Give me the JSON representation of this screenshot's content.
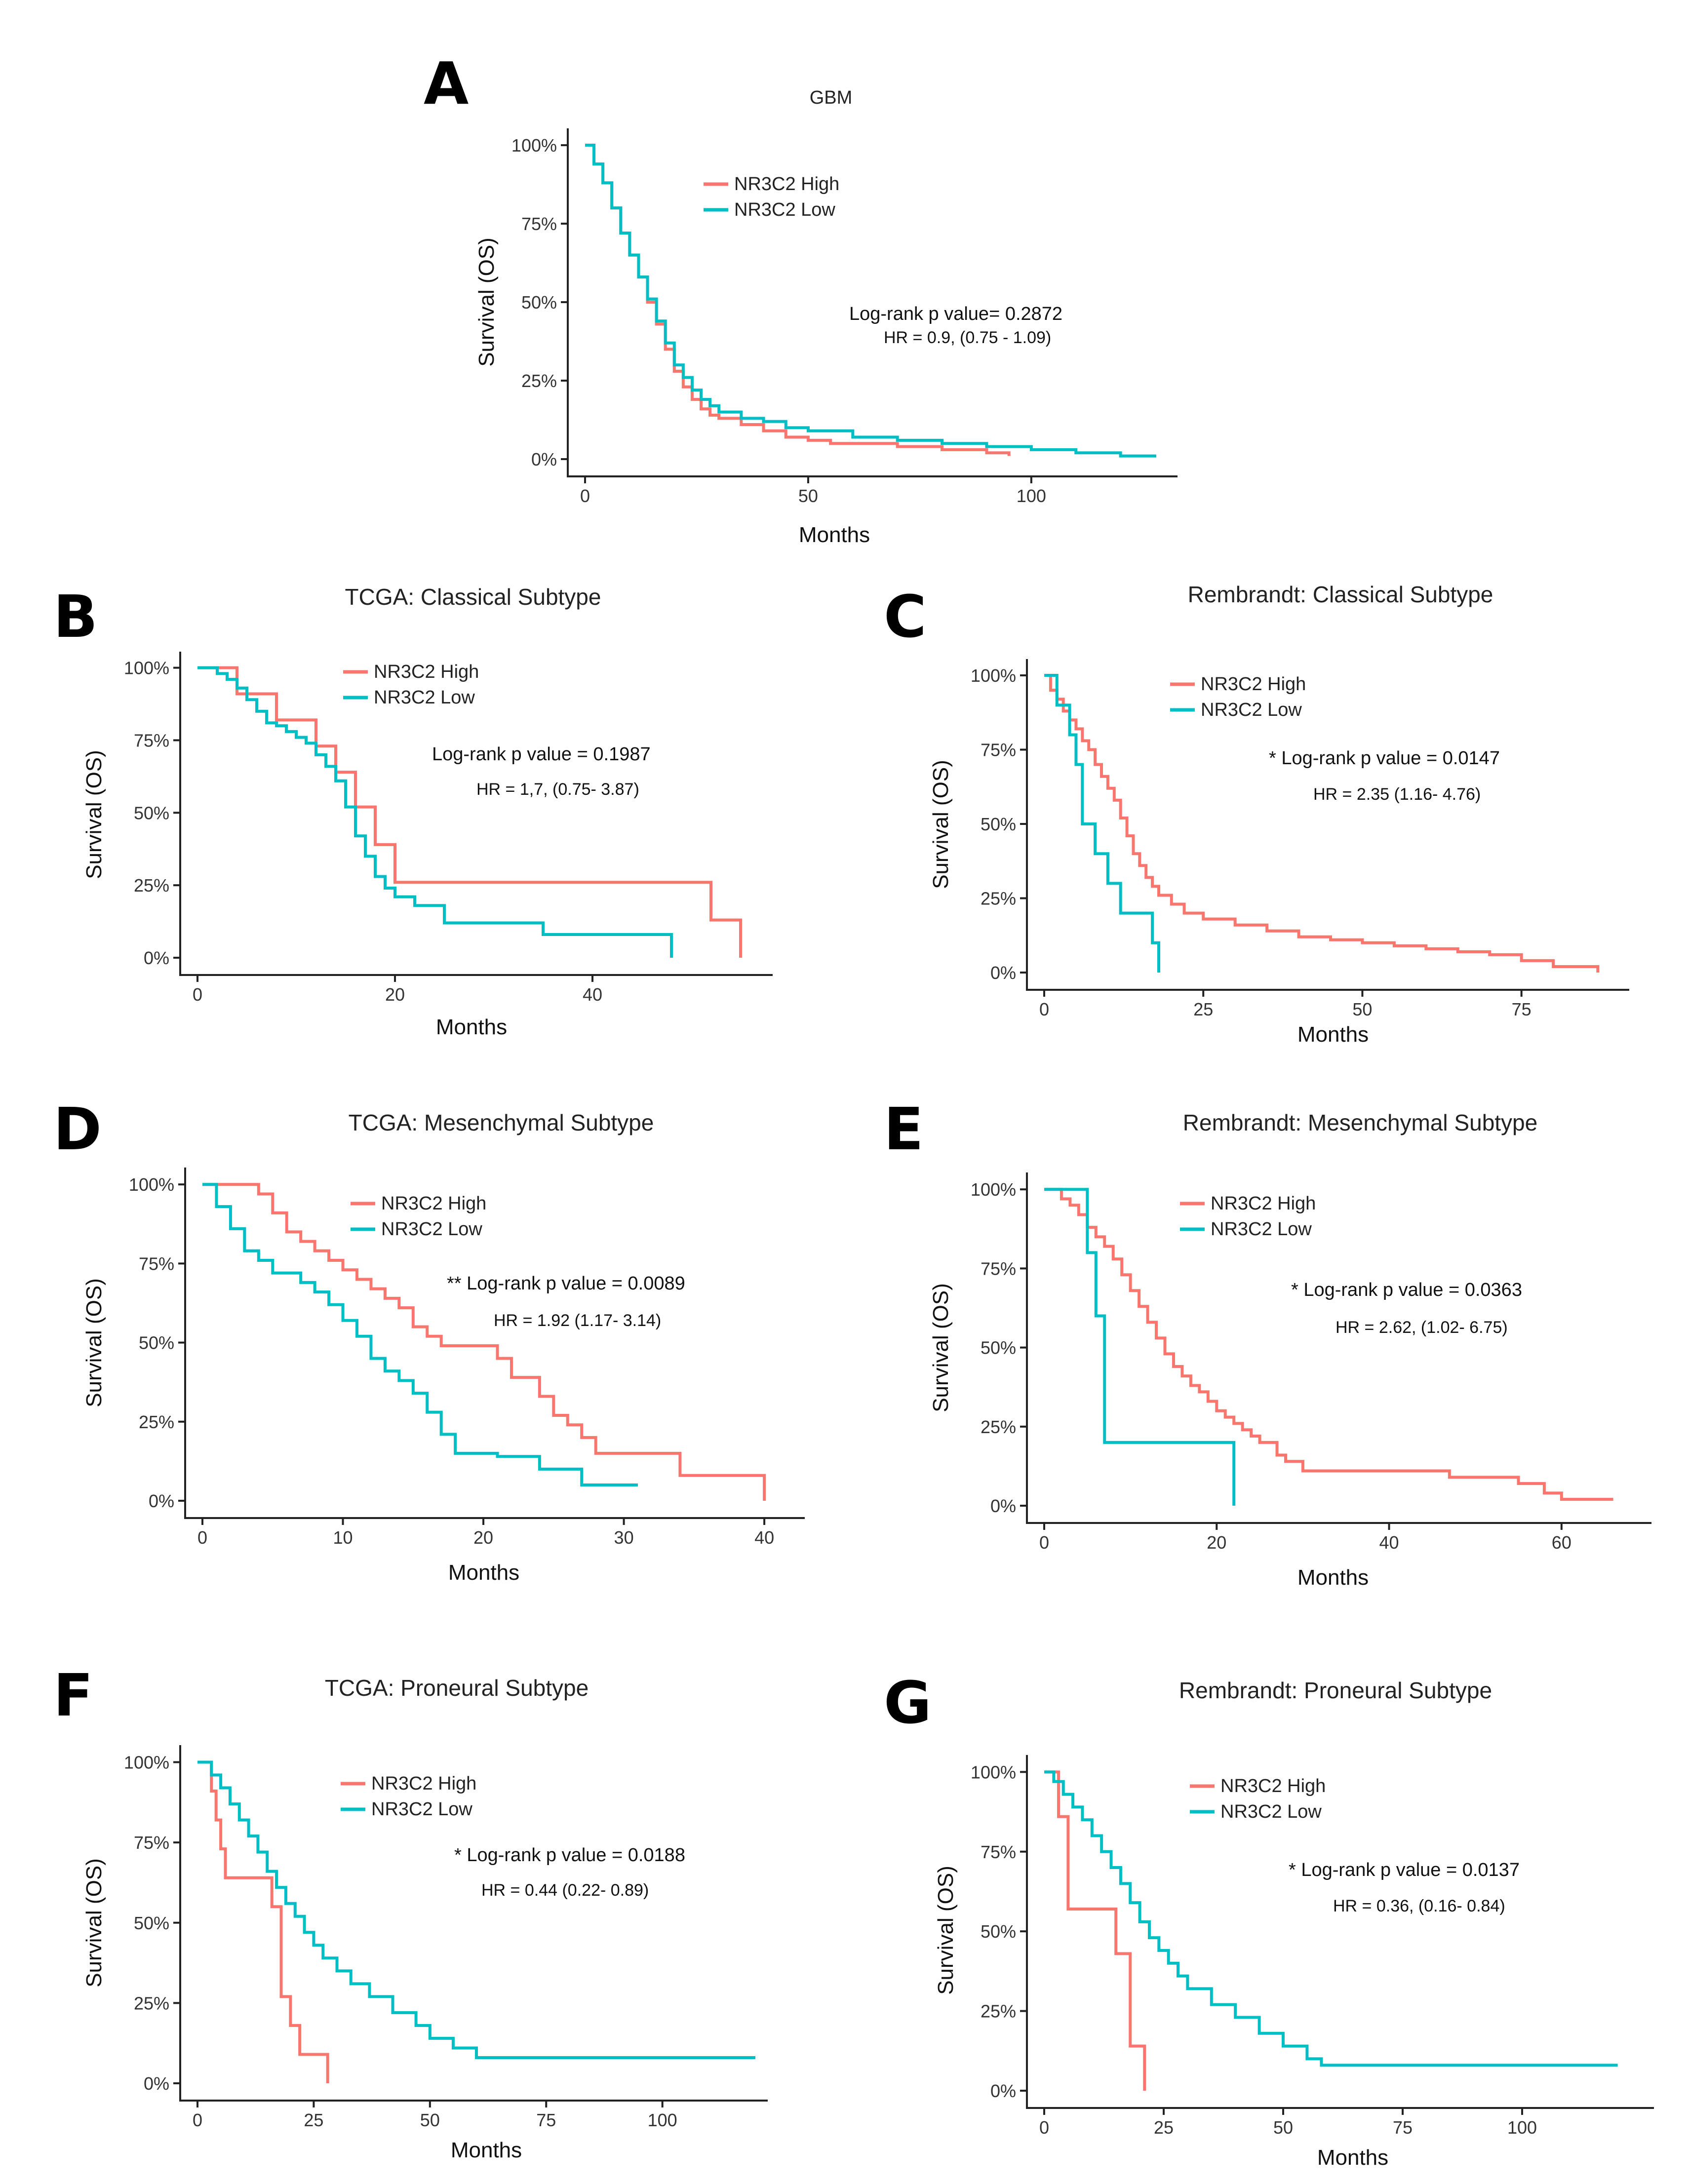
{
  "colors": {
    "high": "#F8766D",
    "low": "#00BFC4"
  },
  "chart_data": [
    {
      "panel": "A",
      "type": "line",
      "title": "GBM",
      "xlabel": "Months",
      "ylabel": "Survival (OS)",
      "xlim": [
        0,
        130
      ],
      "ylim": [
        0,
        1.03
      ],
      "xticks": [
        0,
        50,
        100
      ],
      "yticks": [
        "0%",
        "25%",
        "50%",
        "75%",
        "100%"
      ],
      "legend": [
        "NR3C2 High",
        "NR3C2 Low"
      ],
      "annotation": "Log-rank p value= 0.2872",
      "hr_text": "HR = 0.9, (0.75 - 1.09)",
      "series": [
        {
          "name": "NR3C2 High",
          "color_key": "high",
          "x": [
            0,
            2,
            4,
            6,
            8,
            10,
            12,
            14,
            16,
            18,
            20,
            22,
            24,
            26,
            28,
            30,
            35,
            40,
            45,
            50,
            55,
            60,
            70,
            80,
            90,
            95
          ],
          "y": [
            1.0,
            0.94,
            0.88,
            0.8,
            0.72,
            0.65,
            0.58,
            0.5,
            0.43,
            0.35,
            0.28,
            0.23,
            0.19,
            0.16,
            0.14,
            0.13,
            0.11,
            0.09,
            0.07,
            0.06,
            0.05,
            0.05,
            0.04,
            0.03,
            0.02,
            0.01
          ]
        },
        {
          "name": "NR3C2 Low",
          "color_key": "low",
          "x": [
            0,
            2,
            4,
            6,
            8,
            10,
            12,
            14,
            16,
            18,
            20,
            22,
            24,
            26,
            28,
            30,
            35,
            40,
            45,
            50,
            60,
            70,
            80,
            90,
            100,
            110,
            120,
            128
          ],
          "y": [
            1.0,
            0.94,
            0.88,
            0.8,
            0.72,
            0.65,
            0.58,
            0.51,
            0.44,
            0.37,
            0.3,
            0.26,
            0.22,
            0.19,
            0.17,
            0.15,
            0.13,
            0.12,
            0.1,
            0.09,
            0.07,
            0.06,
            0.05,
            0.04,
            0.03,
            0.02,
            0.01,
            0.01
          ]
        }
      ]
    },
    {
      "panel": "B",
      "type": "line",
      "title": "TCGA:  Classical Subtype",
      "xlabel": "Months",
      "ylabel": "Survival (OS)",
      "xlim": [
        0,
        57
      ],
      "ylim": [
        0,
        1.03
      ],
      "xticks": [
        0,
        20,
        40
      ],
      "yticks": [
        "0%",
        "25%",
        "50%",
        "75%",
        "100%"
      ],
      "legend": [
        "NR3C2 High",
        "NR3C2 Low"
      ],
      "annotation": "Log-rank p value = 0.1987",
      "hr_text": "HR = 1,7, (0.75- 3.87)",
      "series": [
        {
          "name": "NR3C2 High",
          "color_key": "high",
          "x": [
            0,
            4,
            8,
            11,
            12,
            14,
            16,
            18,
            20,
            52,
            55
          ],
          "y": [
            1.0,
            0.91,
            0.82,
            0.82,
            0.73,
            0.64,
            0.52,
            0.39,
            0.26,
            0.13,
            0.0
          ]
        },
        {
          "name": "NR3C2 Low",
          "color_key": "low",
          "x": [
            0,
            2,
            3,
            4,
            5,
            6,
            7,
            8,
            9,
            10,
            11,
            12,
            13,
            14,
            15,
            16,
            17,
            18,
            19,
            20,
            22,
            25,
            35,
            48
          ],
          "y": [
            1.0,
            0.98,
            0.96,
            0.93,
            0.89,
            0.85,
            0.81,
            0.8,
            0.78,
            0.76,
            0.74,
            0.7,
            0.66,
            0.61,
            0.52,
            0.42,
            0.35,
            0.28,
            0.24,
            0.21,
            0.18,
            0.12,
            0.08,
            0.0
          ]
        }
      ]
    },
    {
      "panel": "C",
      "type": "line",
      "title": "Rembrandt: Classical Subtype",
      "xlabel": "Months",
      "ylabel": "Survival (OS)",
      "xlim": [
        0,
        90
      ],
      "ylim": [
        0,
        1.03
      ],
      "xticks": [
        0,
        25,
        50,
        75
      ],
      "yticks": [
        "0%",
        "25%",
        "50%",
        "75%",
        "100%"
      ],
      "legend": [
        "NR3C2 High",
        "NR3C2 Low"
      ],
      "annotation": "* Log-rank p value = 0.0147",
      "hr_text": "HR = 2.35 (1.16- 4.76)",
      "series": [
        {
          "name": "NR3C2 High",
          "color_key": "high",
          "x": [
            0,
            1,
            2,
            3,
            4,
            5,
            6,
            7,
            8,
            9,
            10,
            11,
            12,
            13,
            14,
            15,
            16,
            17,
            18,
            20,
            22,
            25,
            30,
            35,
            40,
            45,
            50,
            55,
            60,
            65,
            70,
            75,
            80,
            87
          ],
          "y": [
            1.0,
            0.95,
            0.92,
            0.88,
            0.85,
            0.82,
            0.78,
            0.75,
            0.7,
            0.66,
            0.62,
            0.58,
            0.52,
            0.46,
            0.4,
            0.36,
            0.32,
            0.29,
            0.26,
            0.23,
            0.2,
            0.18,
            0.16,
            0.14,
            0.12,
            0.11,
            0.1,
            0.09,
            0.08,
            0.07,
            0.06,
            0.04,
            0.02,
            0.0
          ]
        },
        {
          "name": "NR3C2 Low",
          "color_key": "low",
          "x": [
            0,
            2,
            4,
            5,
            6,
            8,
            10,
            12,
            16,
            17,
            18
          ],
          "y": [
            1.0,
            0.9,
            0.8,
            0.7,
            0.5,
            0.4,
            0.3,
            0.2,
            0.2,
            0.1,
            0.0
          ]
        }
      ]
    },
    {
      "panel": "D",
      "type": "line",
      "title": "TCGA:  Mesenchymal Subtype",
      "xlabel": "Months",
      "ylabel": "Survival (OS)",
      "xlim": [
        0,
        42
      ],
      "ylim": [
        0,
        1.03
      ],
      "xticks": [
        0,
        10,
        20,
        30,
        40
      ],
      "yticks": [
        "0%",
        "25%",
        "50%",
        "75%",
        "100%"
      ],
      "legend": [
        "NR3C2 High",
        "NR3C2 Low"
      ],
      "annotation": "** Log-rank p value = 0.0089",
      "hr_text": "HR = 1.92 (1.17- 3.14)",
      "series": [
        {
          "name": "NR3C2 High",
          "color_key": "high",
          "x": [
            0,
            4,
            5,
            6,
            7,
            8,
            9,
            10,
            11,
            12,
            13,
            14,
            15,
            16,
            17,
            18,
            21,
            22,
            24,
            25,
            26,
            27,
            28,
            30,
            34,
            40
          ],
          "y": [
            1.0,
            0.97,
            0.91,
            0.85,
            0.82,
            0.79,
            0.76,
            0.73,
            0.7,
            0.67,
            0.64,
            0.61,
            0.55,
            0.52,
            0.49,
            0.49,
            0.45,
            0.39,
            0.33,
            0.27,
            0.24,
            0.2,
            0.15,
            0.15,
            0.08,
            0.0
          ]
        },
        {
          "name": "NR3C2 Low",
          "color_key": "low",
          "x": [
            0,
            1,
            2,
            3,
            4,
            5,
            6,
            7,
            8,
            9,
            10,
            11,
            12,
            13,
            14,
            15,
            16,
            17,
            18,
            21,
            24,
            27,
            31
          ],
          "y": [
            1.0,
            0.93,
            0.86,
            0.79,
            0.76,
            0.72,
            0.72,
            0.69,
            0.66,
            0.62,
            0.57,
            0.52,
            0.45,
            0.41,
            0.38,
            0.34,
            0.28,
            0.21,
            0.15,
            0.14,
            0.1,
            0.05,
            0.05
          ]
        }
      ]
    },
    {
      "panel": "E",
      "type": "line",
      "title": "Rembrandt: Mesenchymal Subtype",
      "xlabel": "Months",
      "ylabel": "Survival (OS)",
      "xlim": [
        0,
        69
      ],
      "ylim": [
        0,
        1.03
      ],
      "xticks": [
        0,
        20,
        40,
        60
      ],
      "yticks": [
        "0%",
        "25%",
        "50%",
        "75%",
        "100%"
      ],
      "legend": [
        "NR3C2 High",
        "NR3C2 Low"
      ],
      "annotation": "* Log-rank p value = 0.0363",
      "hr_text": "HR = 2.62, (1.02- 6.75)",
      "series": [
        {
          "name": "NR3C2 High",
          "color_key": "high",
          "x": [
            0,
            2,
            3,
            4,
            5,
            6,
            7,
            8,
            9,
            10,
            11,
            12,
            13,
            14,
            15,
            16,
            17,
            18,
            19,
            20,
            21,
            22,
            23,
            24,
            25,
            27,
            28,
            30,
            35,
            40,
            47,
            55,
            58,
            60,
            66
          ],
          "y": [
            1.0,
            0.97,
            0.95,
            0.92,
            0.88,
            0.85,
            0.82,
            0.78,
            0.73,
            0.68,
            0.63,
            0.58,
            0.53,
            0.48,
            0.44,
            0.41,
            0.38,
            0.36,
            0.33,
            0.3,
            0.28,
            0.26,
            0.24,
            0.22,
            0.2,
            0.16,
            0.14,
            0.11,
            0.11,
            0.11,
            0.09,
            0.07,
            0.04,
            0.02,
            0.02
          ]
        },
        {
          "name": "NR3C2 Low",
          "color_key": "low",
          "x": [
            0,
            5,
            6,
            7,
            22
          ],
          "y": [
            1.0,
            0.8,
            0.6,
            0.2,
            0.0
          ]
        }
      ]
    },
    {
      "panel": "F",
      "type": "line",
      "title": "TCGA:  Proneural Subtype",
      "xlabel": "Months",
      "ylabel": "Survival (OS)",
      "xlim": [
        0,
        120
      ],
      "ylim": [
        0,
        1.03
      ],
      "xticks": [
        0,
        25,
        50,
        75,
        100
      ],
      "yticks": [
        "0%",
        "25%",
        "50%",
        "75%",
        "100%"
      ],
      "legend": [
        "NR3C2 High",
        "NR3C2 Low"
      ],
      "annotation": "* Log-rank p value = 0.0188",
      "hr_text": "HR = 0.44 (0.22- 0.89)",
      "series": [
        {
          "name": "NR3C2 High",
          "color_key": "high",
          "x": [
            0,
            3,
            4,
            5,
            6,
            14,
            16,
            18,
            20,
            22,
            28
          ],
          "y": [
            1.0,
            0.91,
            0.82,
            0.73,
            0.64,
            0.64,
            0.55,
            0.27,
            0.18,
            0.09,
            0.0
          ]
        },
        {
          "name": "NR3C2 Low",
          "color_key": "low",
          "x": [
            0,
            3,
            5,
            7,
            9,
            11,
            13,
            15,
            17,
            19,
            21,
            23,
            25,
            27,
            30,
            33,
            37,
            42,
            47,
            50,
            55,
            60,
            120
          ],
          "y": [
            1.0,
            0.96,
            0.92,
            0.87,
            0.82,
            0.77,
            0.72,
            0.66,
            0.61,
            0.56,
            0.52,
            0.47,
            0.43,
            0.39,
            0.35,
            0.31,
            0.27,
            0.22,
            0.18,
            0.14,
            0.11,
            0.08,
            0.08
          ]
        }
      ]
    },
    {
      "panel": "G",
      "type": "line",
      "title": "Rembrandt: Proneural Subtype",
      "xlabel": "Months",
      "ylabel": "Survival (OS)",
      "xlim": [
        0,
        125
      ],
      "ylim": [
        0,
        1.03
      ],
      "xticks": [
        0,
        25,
        50,
        75,
        100
      ],
      "yticks": [
        "0%",
        "25%",
        "50%",
        "75%",
        "100%"
      ],
      "legend": [
        "NR3C2 High",
        "NR3C2 Low"
      ],
      "annotation": "* Log-rank p value = 0.0137",
      "hr_text": "HR = 0.36, (0.16- 0.84)",
      "series": [
        {
          "name": "NR3C2 High",
          "color_key": "high",
          "x": [
            0,
            1,
            3,
            5,
            14,
            15,
            17,
            18,
            20,
            21
          ],
          "y": [
            1.0,
            1.0,
            0.86,
            0.57,
            0.57,
            0.43,
            0.43,
            0.14,
            0.14,
            0.0
          ]
        },
        {
          "name": "NR3C2 Low",
          "color_key": "low",
          "x": [
            0,
            2,
            4,
            6,
            8,
            10,
            12,
            14,
            16,
            18,
            20,
            22,
            24,
            26,
            28,
            30,
            35,
            40,
            45,
            50,
            55,
            58,
            120
          ],
          "y": [
            1.0,
            0.97,
            0.93,
            0.89,
            0.85,
            0.8,
            0.75,
            0.7,
            0.65,
            0.59,
            0.53,
            0.48,
            0.44,
            0.4,
            0.36,
            0.32,
            0.27,
            0.23,
            0.18,
            0.14,
            0.1,
            0.08,
            0.08
          ]
        }
      ]
    }
  ]
}
